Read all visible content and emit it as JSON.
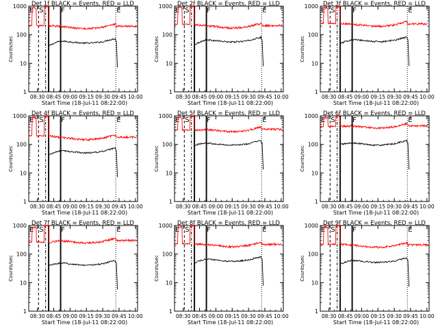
{
  "page": {
    "background": "#ffffff",
    "axis_color": "#000000",
    "events_color": "#000000",
    "lld_color": "#ff0000"
  },
  "common": {
    "xlabel": "Start Time (18-Jul-11 08:22:00)",
    "ylabel": "Counts/sec",
    "x_tick_labels": [
      "08:30",
      "08:45",
      "09:00",
      "09:15",
      "09:30",
      "09:45",
      "10:00"
    ],
    "y_tick_labels": [
      "1",
      "10",
      "100",
      "1000"
    ],
    "marker_labels": [
      {
        "label": "E",
        "x": "08:22"
      },
      {
        "label": "S",
        "x": "08:31"
      },
      {
        "label": "F",
        "x": "08:51"
      },
      {
        "label": "E",
        "x": "09:42"
      }
    ],
    "xlim": [
      "08:22",
      "10:02"
    ],
    "ylim": [
      1,
      1000
    ],
    "yscale": "log"
  },
  "chart_data": [
    {
      "type": "line",
      "title": "Det 1f BLACK = Events, RED = LLD",
      "detector": "1f",
      "series": [
        {
          "name": "Events",
          "color": "#000000",
          "base": 62,
          "start": 40
        },
        {
          "name": "LLD",
          "color": "#ff0000",
          "base": 200,
          "start": 210
        }
      ]
    },
    {
      "type": "line",
      "title": "Det 2f BLACK = Events, RED = LLD",
      "detector": "2f",
      "series": [
        {
          "name": "Events",
          "color": "#000000",
          "base": 68,
          "start": 45
        },
        {
          "name": "LLD",
          "color": "#ff0000",
          "base": 210,
          "start": 230
        }
      ]
    },
    {
      "type": "line",
      "title": "Det 3f BLACK = Events, RED = LLD",
      "detector": "3f",
      "series": [
        {
          "name": "Events",
          "color": "#000000",
          "base": 70,
          "start": 48
        },
        {
          "name": "LLD",
          "color": "#ff0000",
          "base": 240,
          "start": 250
        }
      ]
    },
    {
      "type": "line",
      "title": "Det 4f BLACK = Events, RED = LLD",
      "detector": "4f",
      "series": [
        {
          "name": "Events",
          "color": "#000000",
          "base": 62,
          "start": 42
        },
        {
          "name": "LLD",
          "color": "#ff0000",
          "base": 180,
          "start": 200
        }
      ]
    },
    {
      "type": "line",
      "title": "Det 5f BLACK = Events, RED = LLD",
      "detector": "5f",
      "series": [
        {
          "name": "Events",
          "color": "#000000",
          "base": 115,
          "start": 95
        },
        {
          "name": "LLD",
          "color": "#ff0000",
          "base": 340,
          "start": 320
        }
      ]
    },
    {
      "type": "line",
      "title": "Det 6f BLACK = Events, RED = LLD",
      "detector": "6f",
      "series": [
        {
          "name": "Events",
          "color": "#000000",
          "base": 115,
          "start": 100
        },
        {
          "name": "LLD",
          "color": "#ff0000",
          "base": 450,
          "start": 430
        }
      ]
    },
    {
      "type": "line",
      "title": "Det 7f BLACK = Events, RED = LLD",
      "detector": "7f",
      "series": [
        {
          "name": "Events",
          "color": "#000000",
          "base": 50,
          "start": 40
        },
        {
          "name": "LLD",
          "color": "#ff0000",
          "base": 300,
          "start": 260
        }
      ]
    },
    {
      "type": "line",
      "title": "Det 8f BLACK = Events, RED = LLD",
      "detector": "8f",
      "series": [
        {
          "name": "Events",
          "color": "#000000",
          "base": 68,
          "start": 50
        },
        {
          "name": "LLD",
          "color": "#ff0000",
          "base": 220,
          "start": 230
        }
      ]
    },
    {
      "type": "line",
      "title": "Det 9f BLACK = Events, RED = LLD",
      "detector": "9f",
      "series": [
        {
          "name": "Events",
          "color": "#000000",
          "base": 62,
          "start": 45
        },
        {
          "name": "LLD",
          "color": "#ff0000",
          "base": 210,
          "start": 220
        }
      ]
    }
  ]
}
